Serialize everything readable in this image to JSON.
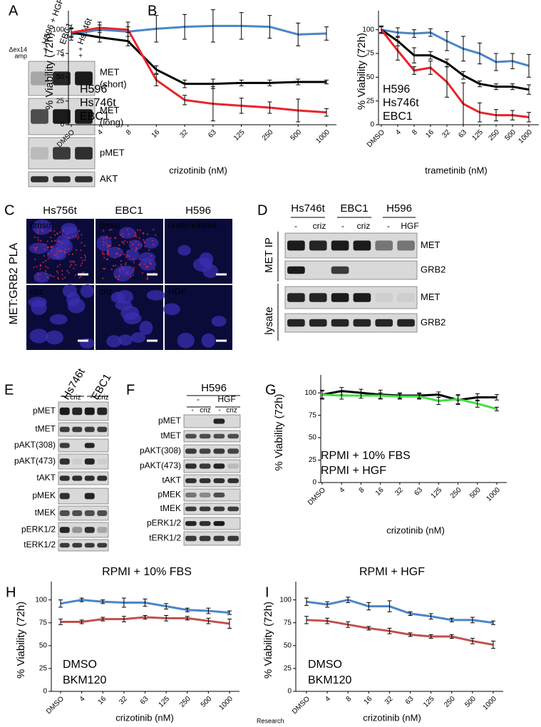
{
  "panel_labels": [
    "A",
    "B",
    "C",
    "D",
    "E",
    "F",
    "G",
    "H",
    "I"
  ],
  "panel_a": {
    "columns": [
      "H596 + HGF",
      "EBC1",
      "Hs746t"
    ],
    "rows": [
      {
        "label": "Δex14",
        "marks": [
          "+",
          "-",
          "+"
        ]
      },
      {
        "label": "amp",
        "marks": [
          "-",
          "+",
          "+"
        ]
      }
    ],
    "blots": [
      {
        "label": "MET",
        "sublabel": "(short)"
      },
      {
        "label": "MET",
        "sublabel": "(long)"
      },
      {
        "label": "pMET"
      },
      {
        "label": "AKT"
      }
    ]
  },
  "panel_c": {
    "side_label": "MET:GRB2 PLA",
    "columns": [
      "Hs756t",
      "EBC1",
      "H596"
    ],
    "images": [
      [
        "dmso",
        "dmso",
        "unstimulated"
      ],
      [
        "criz",
        "criz",
        "HGF"
      ]
    ]
  },
  "panel_d": {
    "columns": [
      "Hs746t",
      "EBC1",
      "H596"
    ],
    "lanes": [
      "-",
      "criz",
      "-",
      "criz",
      "-",
      "HGF"
    ],
    "groups": [
      {
        "label": "MET IP",
        "blots": [
          "MET",
          "GRB2"
        ]
      },
      {
        "label": "lysate",
        "blots": [
          "MET",
          "GRB2"
        ]
      }
    ]
  },
  "panel_e": {
    "columns": [
      "Hs746t",
      "EBC1"
    ],
    "lanes": [
      "-",
      "criz",
      "-",
      "criz"
    ],
    "blots": [
      "pMET",
      "tMET",
      "pAKT(308)",
      "pAKT(473)",
      "tAKT",
      "pMEK",
      "tMEK",
      "pERK1/2",
      "tERK1/2"
    ]
  },
  "panel_f": {
    "cell_line": "H596",
    "conditions": [
      "-",
      "HGF"
    ],
    "lanes": [
      "-",
      "criz",
      "-",
      "criz"
    ],
    "blots": [
      "pMET",
      "tMET",
      "pAKT(308)",
      "pAKT(473)",
      "tAKT",
      "pMEK",
      "tMEK",
      "pERK1/2",
      "tERK1/2"
    ]
  },
  "watermark": "Research",
  "chart_data": [
    {
      "type": "line",
      "x_label": "crizotinib (nM)",
      "y_label": "% Viability (72h)",
      "categories": [
        "DMSO",
        "4",
        "8",
        "16",
        "32",
        "63",
        "125",
        "250",
        "500",
        "1000"
      ],
      "ylim": [
        0,
        120
      ],
      "yticks": [
        0,
        25,
        50,
        75,
        100
      ],
      "series": [
        {
          "name": "H596",
          "color": "#4a86c8",
          "values": [
            95,
            100,
            98,
            101,
            103,
            104,
            104,
            103,
            95,
            96
          ],
          "errors": [
            6,
            8,
            10,
            14,
            13,
            17,
            14,
            12,
            12,
            7
          ]
        },
        {
          "name": "Hs746t",
          "color": "#000000",
          "values": [
            97,
            92,
            88,
            58,
            43,
            43,
            44,
            44,
            45,
            45
          ],
          "errors": [
            4,
            5,
            5,
            4,
            4,
            5,
            3,
            3,
            3,
            2
          ]
        },
        {
          "name": "EBC1",
          "color": "#e8242a",
          "values": [
            97,
            102,
            100,
            47,
            26,
            22,
            20,
            18,
            15,
            13
          ],
          "errors": [
            5,
            3,
            3,
            6,
            5,
            18,
            8,
            6,
            12,
            4
          ]
        }
      ]
    },
    {
      "type": "line",
      "x_label": "trametinib (nM)",
      "y_label": "% Viability (72h)",
      "categories": [
        "DMSO",
        "4",
        "8",
        "16",
        "32",
        "63",
        "125",
        "250",
        "500",
        "1000"
      ],
      "ylim": [
        0,
        120
      ],
      "yticks": [
        0,
        25,
        50,
        75,
        100
      ],
      "series": [
        {
          "name": "H596",
          "color": "#4a86c8",
          "values": [
            100,
            97,
            96,
            97,
            88,
            80,
            75,
            66,
            67,
            62
          ],
          "errors": [
            3,
            5,
            4,
            4,
            10,
            13,
            11,
            9,
            8,
            12
          ]
        },
        {
          "name": "Hs746t",
          "color": "#000000",
          "values": [
            100,
            88,
            73,
            73,
            65,
            52,
            43,
            40,
            40,
            37
          ],
          "errors": [
            3,
            5,
            8,
            4,
            4,
            4,
            3,
            3,
            3,
            5
          ]
        },
        {
          "name": "EBC1",
          "color": "#e8242a",
          "values": [
            100,
            78,
            57,
            60,
            45,
            22,
            13,
            10,
            10,
            8
          ],
          "errors": [
            4,
            10,
            4,
            7,
            16,
            22,
            10,
            6,
            5,
            5
          ]
        }
      ]
    },
    {
      "type": "line",
      "x_label": "crizotinib (nM)",
      "y_label": "% Viability (72h)",
      "categories": [
        "DMSO",
        "4",
        "8",
        "16",
        "32",
        "63",
        "125",
        "250",
        "500",
        "1000"
      ],
      "ylim": [
        0,
        120
      ],
      "yticks": [
        0,
        25,
        50,
        75,
        100
      ],
      "series": [
        {
          "name": "RPMI + 10% FBS",
          "color": "#000000",
          "values": [
            98,
            102,
            100,
            98,
            97,
            97,
            98,
            92,
            95,
            95
          ],
          "errors": [
            5,
            4,
            4,
            5,
            3,
            3,
            3,
            5,
            4,
            3
          ]
        },
        {
          "name": "RPMI + HGF",
          "color": "#3fe03f",
          "values": [
            98,
            97,
            97,
            97,
            96,
            96,
            91,
            93,
            88,
            82
          ],
          "errors": [
            4,
            4,
            3,
            3,
            3,
            3,
            4,
            5,
            4,
            2
          ]
        }
      ]
    },
    {
      "type": "line",
      "title": "RPMI + 10% FBS",
      "x_label": "crizotinib (nM)",
      "y_label": "% Viability (72h)",
      "categories": [
        "DMSO",
        "4",
        "16",
        "32",
        "63",
        "125",
        "250",
        "500",
        "1000"
      ],
      "ylim": [
        0,
        120
      ],
      "yticks": [
        0,
        25,
        50,
        75,
        100
      ],
      "series": [
        {
          "name": "DMSO",
          "color": "#4a86c8",
          "values": [
            96,
            100,
            98,
            97,
            97,
            93,
            89,
            88,
            86
          ],
          "errors": [
            4,
            2,
            2,
            5,
            4,
            3,
            2,
            3,
            2
          ]
        },
        {
          "name": "BKM120",
          "color": "#c0504d",
          "values": [
            76,
            76,
            79,
            79,
            81,
            80,
            80,
            77,
            74
          ],
          "errors": [
            3,
            2,
            2,
            3,
            2,
            3,
            2,
            3,
            5
          ]
        }
      ]
    },
    {
      "type": "line",
      "title": "RPMI + HGF",
      "x_label": "crizotinib (nM)",
      "y_label": "% Viability (72h)",
      "categories": [
        "DMSO",
        "4",
        "8",
        "16",
        "32",
        "63",
        "125",
        "250",
        "500",
        "1000"
      ],
      "ylim": [
        0,
        120
      ],
      "yticks": [
        0,
        25,
        50,
        75,
        100
      ],
      "series": [
        {
          "name": "DMSO",
          "color": "#4a86c8",
          "values": [
            98,
            95,
            100,
            93,
            93,
            85,
            82,
            78,
            78,
            75
          ],
          "errors": [
            4,
            3,
            3,
            4,
            6,
            2,
            3,
            2,
            3,
            2
          ]
        },
        {
          "name": "BKM120",
          "color": "#c0504d",
          "values": [
            78,
            77,
            73,
            69,
            66,
            62,
            60,
            60,
            55,
            51
          ],
          "errors": [
            4,
            3,
            3,
            2,
            3,
            2,
            2,
            2,
            3,
            4
          ]
        }
      ]
    }
  ]
}
